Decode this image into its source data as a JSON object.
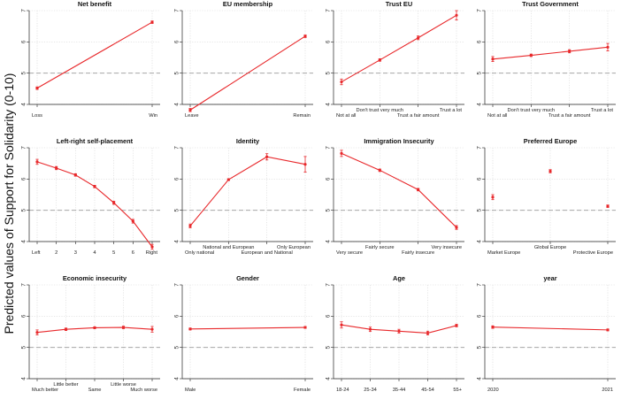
{
  "y_axis_label": "Predicted values of Support for Solidarity (0-10)",
  "reference_line": 5,
  "chart_data": [
    {
      "type": "line",
      "title": "Net benefit",
      "ylim": [
        4,
        7
      ],
      "yticks": [
        4,
        5,
        6,
        7
      ],
      "categories": [
        "Loss",
        "Win"
      ],
      "values": [
        4.52,
        6.63
      ],
      "ci": [
        0.04,
        0.04
      ],
      "connected": true
    },
    {
      "type": "line",
      "title": "EU membership",
      "ylim": [
        4,
        7
      ],
      "yticks": [
        4,
        5,
        6,
        7
      ],
      "categories": [
        "Leave",
        "Remain"
      ],
      "values": [
        3.82,
        6.18
      ],
      "ci": [
        0.05,
        0.04
      ],
      "connected": true
    },
    {
      "type": "line",
      "title": "Trust EU",
      "ylim": [
        4,
        7
      ],
      "yticks": [
        4,
        5,
        6,
        7
      ],
      "categories": [
        "Not at all",
        "Don't trust very much",
        "Trust a fair amount",
        "Trust a lot"
      ],
      "values": [
        4.72,
        5.42,
        6.13,
        6.85
      ],
      "ci": [
        0.09,
        0.04,
        0.06,
        0.15
      ],
      "connected": true
    },
    {
      "type": "line",
      "title": "Trust Government",
      "ylim": [
        4,
        7
      ],
      "yticks": [
        4,
        5,
        6,
        7
      ],
      "categories": [
        "Not at all",
        "Don't trust very much",
        "Trust a fair amount",
        "Trust a lot"
      ],
      "values": [
        5.45,
        5.57,
        5.7,
        5.83
      ],
      "ci": [
        0.08,
        0.04,
        0.05,
        0.12
      ],
      "connected": true
    },
    {
      "type": "line",
      "title": "Left-right self-placement",
      "ylim": [
        4,
        7
      ],
      "yticks": [
        4,
        5,
        6,
        7
      ],
      "categories": [
        "Left",
        "2",
        "3",
        "4",
        "5",
        "6",
        "Right"
      ],
      "values": [
        6.55,
        6.35,
        6.13,
        5.76,
        5.24,
        4.65,
        3.83
      ],
      "ci": [
        0.08,
        0.05,
        0.04,
        0.04,
        0.05,
        0.06,
        0.08
      ],
      "connected": true
    },
    {
      "type": "line",
      "title": "Identity",
      "ylim": [
        4,
        7
      ],
      "yticks": [
        4,
        5,
        6,
        7
      ],
      "categories": [
        "Only national",
        "National and European",
        "European and National",
        "Only European"
      ],
      "values": [
        4.5,
        5.98,
        6.71,
        6.47
      ],
      "ci": [
        0.06,
        0.03,
        0.1,
        0.25
      ],
      "connected": true
    },
    {
      "type": "line",
      "title": "Immigration Insecurity",
      "ylim": [
        4,
        7
      ],
      "yticks": [
        4,
        5,
        6,
        7
      ],
      "categories": [
        "Very secure",
        "Fairly secure",
        "Fairly insecure",
        "Very insecure"
      ],
      "values": [
        6.82,
        6.28,
        5.66,
        4.45
      ],
      "ci": [
        0.1,
        0.04,
        0.04,
        0.06
      ],
      "connected": true
    },
    {
      "type": "scatter",
      "title": "Preferred Europe",
      "ylim": [
        4,
        7
      ],
      "yticks": [
        4,
        5,
        6,
        7
      ],
      "categories": [
        "Market Europe",
        "Global Europe",
        "Protective Europe"
      ],
      "values": [
        5.42,
        6.25,
        5.13
      ],
      "ci": [
        0.08,
        0.05,
        0.04
      ],
      "connected": false
    },
    {
      "type": "line",
      "title": "Economic insecurity",
      "ylim": [
        4,
        7
      ],
      "yticks": [
        4,
        5,
        6,
        7
      ],
      "categories": [
        "Much better",
        "Little better",
        "Same",
        "Little worse",
        "Much worse"
      ],
      "values": [
        5.48,
        5.58,
        5.63,
        5.64,
        5.58
      ],
      "ci": [
        0.08,
        0.04,
        0.03,
        0.04,
        0.09
      ],
      "connected": true
    },
    {
      "type": "line",
      "title": "Gender",
      "ylim": [
        4,
        7
      ],
      "yticks": [
        4,
        5,
        6,
        7
      ],
      "categories": [
        "Male",
        "Female"
      ],
      "values": [
        5.59,
        5.64
      ],
      "ci": [
        0.03,
        0.03
      ],
      "connected": true
    },
    {
      "type": "line",
      "title": "Age",
      "ylim": [
        4,
        7
      ],
      "yticks": [
        4,
        5,
        6,
        7
      ],
      "categories": [
        "18-24",
        "25-34",
        "35-44",
        "45-54",
        "55+"
      ],
      "values": [
        5.72,
        5.58,
        5.52,
        5.46,
        5.7
      ],
      "ci": [
        0.1,
        0.07,
        0.06,
        0.06,
        0.04
      ],
      "connected": true
    },
    {
      "type": "line",
      "title": "year",
      "ylim": [
        4,
        7
      ],
      "yticks": [
        4,
        5,
        6,
        7
      ],
      "categories": [
        "2020",
        "2021"
      ],
      "values": [
        5.65,
        5.56
      ],
      "ci": [
        0.04,
        0.03
      ],
      "connected": true
    }
  ]
}
